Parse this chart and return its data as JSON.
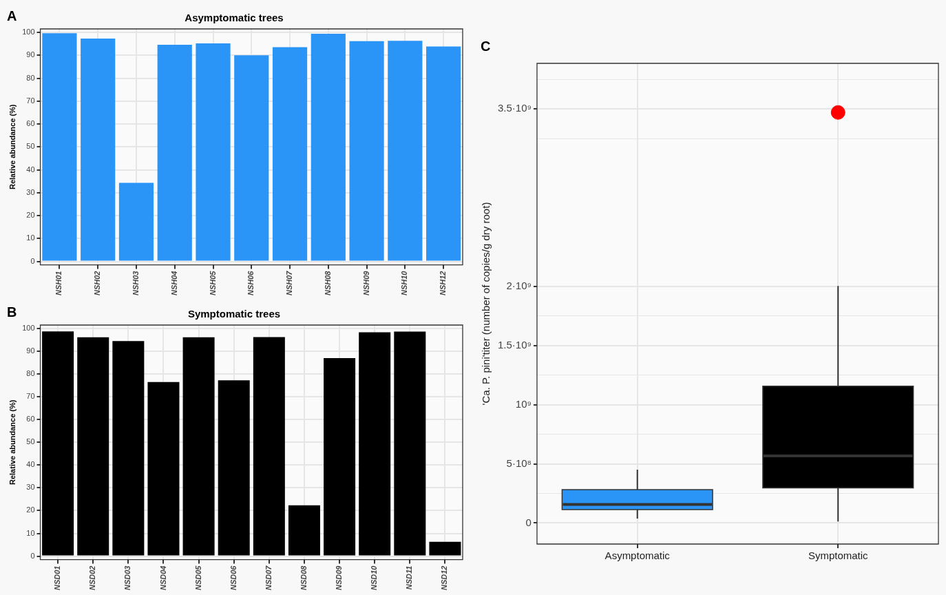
{
  "chart_data": [
    {
      "type": "bar",
      "title": "Asymptomatic trees",
      "ylabel": "Relative abundance (%)",
      "annotations": [
        "A"
      ],
      "categories": [
        "NSH01",
        "NSH02",
        "NSH03",
        "NSH04",
        "NSH05",
        "NSH06",
        "NSH07",
        "NSH08",
        "NSH09",
        "NSH10",
        "NSH12"
      ],
      "values": [
        99.6,
        97.3,
        34.3,
        94.6,
        95.2,
        90.0,
        93.5,
        99.4,
        96.2,
        96.3,
        93.8
      ],
      "color": "#2b95f7",
      "ylim": [
        -1.5,
        101.5
      ],
      "yticks": [
        0,
        10,
        20,
        30,
        40,
        50,
        60,
        70,
        80,
        90,
        100
      ],
      "grid": true
    },
    {
      "type": "bar",
      "title": "Symptomatic trees",
      "ylabel": "Relative abundance (%)",
      "annotations": [
        "B"
      ],
      "categories": [
        "NSD01",
        "NSD02",
        "NSD03",
        "NSD04",
        "NSD05",
        "NSD06",
        "NSD07",
        "NSD08",
        "NSD09",
        "NSD10",
        "NSD11",
        "NSD12"
      ],
      "values": [
        98.7,
        96.1,
        94.5,
        76.5,
        96.1,
        77.2,
        96.2,
        22.3,
        87.0,
        98.3,
        98.6,
        6.3
      ],
      "color": "#000000",
      "ylim": [
        -1.5,
        101.5
      ],
      "yticks": [
        0,
        10,
        20,
        30,
        40,
        50,
        60,
        70,
        80,
        90,
        100
      ],
      "grid": true
    },
    {
      "type": "box",
      "ylabel": "'Ca. P. pini'titer (number of copies/g dry root)",
      "annotations": [
        "C"
      ],
      "categories": [
        "Asymptomatic",
        "Symptomatic"
      ],
      "series": [
        {
          "type": "box",
          "colors": [
            "#2b95f7",
            "#000000"
          ],
          "boxes": [
            {
              "low": 37000000,
              "q1": 113000000,
              "median": 156000000,
              "q3": 282000000,
              "high": 450000000
            },
            {
              "low": 13000000,
              "q1": 296000000,
              "median": 567000000,
              "q3": 1157000000,
              "high": 2003000000
            }
          ]
        },
        {
          "type": "scatter",
          "x": [
            "Symptomatic"
          ],
          "values": [
            3470000000
          ],
          "color": "#ff0000",
          "marker": "circle"
        }
      ],
      "ylim": [
        -178000000,
        3885000000
      ],
      "yticks": [
        {
          "value": 0,
          "label": "0"
        },
        {
          "value": 250000000,
          "label": null
        },
        {
          "value": 500000000,
          "label": "5·10⁸"
        },
        {
          "value": 750000000,
          "label": null
        },
        {
          "value": 1000000000,
          "label": "10⁹"
        },
        {
          "value": 1250000000,
          "label": null
        },
        {
          "value": 1500000000,
          "label": "1.5·10⁹"
        },
        {
          "value": 1750000000,
          "label": null
        },
        {
          "value": 2000000000,
          "label": "2·10⁹"
        },
        {
          "value": 3250000000,
          "label": null
        },
        {
          "value": 3500000000,
          "label": "3.5·10⁹"
        },
        {
          "value": 3750000000,
          "label": null
        }
      ],
      "grid": true
    }
  ]
}
